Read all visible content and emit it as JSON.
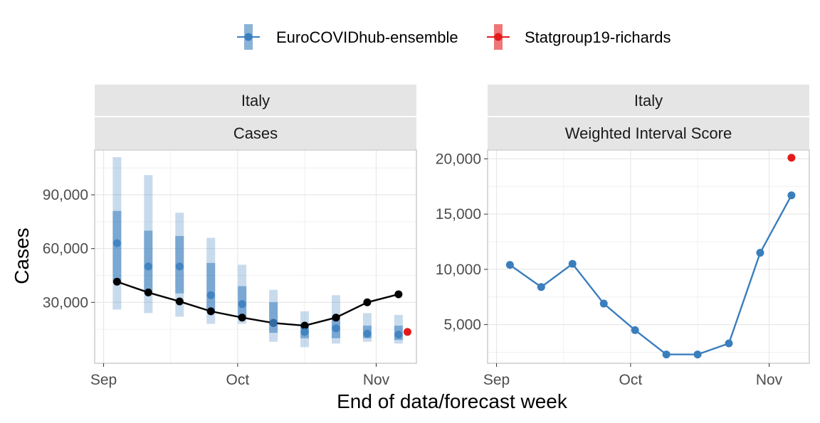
{
  "colors": {
    "ensemble": "#3a7ebd",
    "richards": "#e31a1c",
    "observed": "#000000",
    "strip_bg": "#e5e5e5",
    "grid": "#e8e8e8",
    "panel_border": "#b3b3b3"
  },
  "legend": {
    "items": [
      {
        "label": "EuroCOVIDhub-ensemble",
        "color": "#3a7ebd"
      },
      {
        "label": "Statgroup19-richards",
        "color": "#e31a1c"
      }
    ]
  },
  "x_axis_title": "End of data/forecast week",
  "chart_data": [
    {
      "type": "line",
      "strips": [
        "Italy",
        "Cases"
      ],
      "ylabel": "Cases",
      "ylim": [
        -4000,
        115000
      ],
      "yticks": [
        30000,
        60000,
        90000
      ],
      "ytick_labels": [
        "30,000",
        "60,000",
        "90,000"
      ],
      "xticks": [
        "Sep",
        "Oct",
        "Nov"
      ],
      "observed": {
        "name": "observed",
        "points": [
          {
            "date": "2021-09-04",
            "value": 41500
          },
          {
            "date": "2021-09-11",
            "value": 35500
          },
          {
            "date": "2021-09-18",
            "value": 30500
          },
          {
            "date": "2021-09-25",
            "value": 25000
          },
          {
            "date": "2021-10-02",
            "value": 21500
          },
          {
            "date": "2021-10-09",
            "value": 18500
          },
          {
            "date": "2021-10-16",
            "value": 17000
          },
          {
            "date": "2021-10-23",
            "value": 21500
          },
          {
            "date": "2021-10-30",
            "value": 30000
          },
          {
            "date": "2021-11-06",
            "value": 34500
          }
        ]
      },
      "forecasts": [
        {
          "model": "EuroCOVIDhub-ensemble",
          "date": "2021-09-04",
          "median": 63000,
          "lower50": 41000,
          "upper50": 81000,
          "lower90": 26000,
          "upper90": 111000
        },
        {
          "model": "EuroCOVIDhub-ensemble",
          "date": "2021-09-11",
          "median": 50000,
          "lower50": 36000,
          "upper50": 70000,
          "lower90": 24000,
          "upper90": 101000
        },
        {
          "model": "EuroCOVIDhub-ensemble",
          "date": "2021-09-18",
          "median": 50000,
          "lower50": 35000,
          "upper50": 67000,
          "lower90": 22000,
          "upper90": 80000
        },
        {
          "model": "EuroCOVIDhub-ensemble",
          "date": "2021-09-25",
          "median": 34000,
          "lower50": 25000,
          "upper50": 52000,
          "lower90": 18000,
          "upper90": 66000
        },
        {
          "model": "EuroCOVIDhub-ensemble",
          "date": "2021-10-02",
          "median": 29000,
          "lower50": 21000,
          "upper50": 39000,
          "lower90": 18000,
          "upper90": 51000
        },
        {
          "model": "EuroCOVIDhub-ensemble",
          "date": "2021-10-09",
          "median": 18500,
          "lower50": 13000,
          "upper50": 30000,
          "lower90": 8000,
          "upper90": 37000
        },
        {
          "model": "EuroCOVIDhub-ensemble",
          "date": "2021-10-16",
          "median": 13500,
          "lower50": 10000,
          "upper50": 18000,
          "lower90": 5000,
          "upper90": 25000
        },
        {
          "model": "EuroCOVIDhub-ensemble",
          "date": "2021-10-23",
          "median": 15500,
          "lower50": 10000,
          "upper50": 22000,
          "lower90": 7000,
          "upper90": 34000
        },
        {
          "model": "EuroCOVIDhub-ensemble",
          "date": "2021-10-30",
          "median": 12500,
          "lower50": 10000,
          "upper50": 17000,
          "lower90": 8000,
          "upper90": 24000
        },
        {
          "model": "EuroCOVIDhub-ensemble",
          "date": "2021-11-06",
          "median": 12000,
          "lower50": 9000,
          "upper50": 17000,
          "lower90": 7000,
          "upper90": 23000
        }
      ],
      "extra_points": [
        {
          "model": "Statgroup19-richards",
          "date": "2021-11-08",
          "value": 13500
        }
      ]
    },
    {
      "type": "line",
      "strips": [
        "Italy",
        "Weighted Interval Score"
      ],
      "ylim": [
        1500,
        20800
      ],
      "yticks": [
        5000,
        10000,
        15000,
        20000
      ],
      "ytick_labels": [
        "5,000",
        "10,000",
        "15,000",
        "20,000"
      ],
      "xticks": [
        "Sep",
        "Oct",
        "Nov"
      ],
      "series": [
        {
          "name": "EuroCOVIDhub-ensemble",
          "points": [
            {
              "date": "2021-09-04",
              "value": 10400
            },
            {
              "date": "2021-09-11",
              "value": 8400
            },
            {
              "date": "2021-09-18",
              "value": 10500
            },
            {
              "date": "2021-09-25",
              "value": 6900
            },
            {
              "date": "2021-10-02",
              "value": 4500
            },
            {
              "date": "2021-10-09",
              "value": 2300
            },
            {
              "date": "2021-10-16",
              "value": 2300
            },
            {
              "date": "2021-10-23",
              "value": 3300
            },
            {
              "date": "2021-10-30",
              "value": 11500
            },
            {
              "date": "2021-11-06",
              "value": 16700
            }
          ]
        },
        {
          "name": "Statgroup19-richards",
          "points": [
            {
              "date": "2021-11-06",
              "value": 20100
            }
          ]
        }
      ]
    }
  ]
}
